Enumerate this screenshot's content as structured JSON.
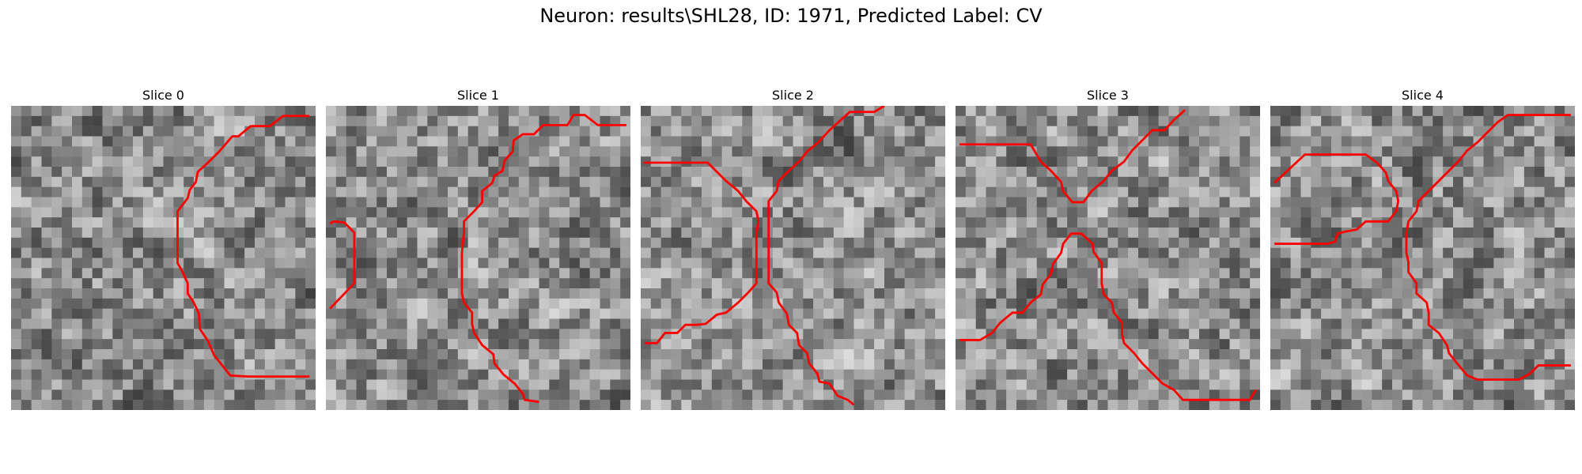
{
  "figure": {
    "title": "Neuron: results\\SHL28, ID: 1971, Predicted Label: CV"
  },
  "panels": [
    {
      "title": "Slice 0"
    },
    {
      "title": "Slice 1"
    },
    {
      "title": "Slice 2"
    },
    {
      "title": "Slice 3"
    },
    {
      "title": "Slice 4"
    }
  ],
  "colors": {
    "contour": "#ff0000",
    "background": "#ffffff",
    "colormap": "grayscale"
  }
}
